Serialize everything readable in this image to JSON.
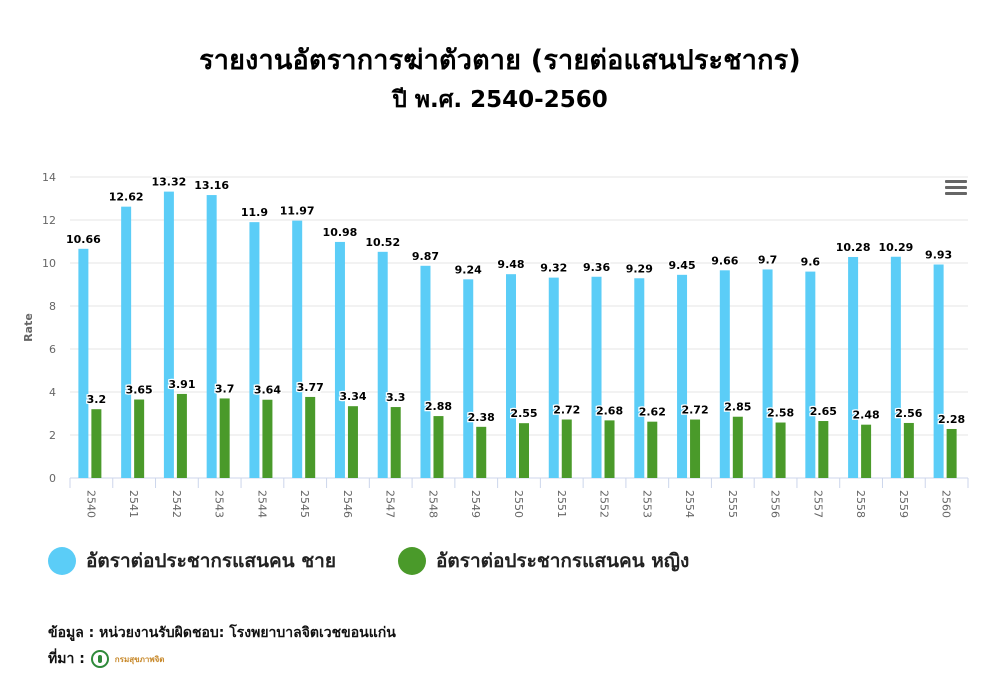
{
  "title": "รายงานอัตราการฆ่าตัวตาย (รายต่อแสนประชากร)",
  "subtitle": "ปี พ.ศ. 2540-2560",
  "source_text": "ข้อมูล : หน่วยงานรับผิดชอบ: โรงพยาบาลจิตเวชขอนแก่น",
  "reference_label": "ที่มา :",
  "reference_org": "กรมสุขภาพจิต",
  "menu_icon": "hamburger-menu-icon",
  "chart_data": {
    "type": "bar",
    "ylabel": "Rate",
    "xlabel": "",
    "ylim": [
      0,
      14
    ],
    "yticks": [
      0,
      2,
      4,
      6,
      8,
      10,
      12,
      14
    ],
    "grid": true,
    "legend_position": "bottom",
    "categories": [
      "2540",
      "2541",
      "2542",
      "2543",
      "2544",
      "2545",
      "2546",
      "2547",
      "2548",
      "2549",
      "2550",
      "2551",
      "2552",
      "2553",
      "2554",
      "2555",
      "2556",
      "2557",
      "2558",
      "2559",
      "2560"
    ],
    "series": [
      {
        "name": "อัตราต่อประชากรแสนคน ชาย",
        "color": "#5bcdf7",
        "values": [
          10.66,
          12.62,
          13.32,
          13.16,
          11.9,
          11.97,
          10.98,
          10.52,
          9.87,
          9.24,
          9.48,
          9.32,
          9.36,
          9.29,
          9.45,
          9.66,
          9.7,
          9.6,
          10.28,
          10.29,
          9.93
        ]
      },
      {
        "name": "อัตราต่อประชากรแสนคน หญิง",
        "color": "#4a9a2a",
        "values": [
          3.2,
          3.65,
          3.91,
          3.7,
          3.64,
          3.77,
          3.34,
          3.3,
          2.88,
          2.38,
          2.55,
          2.72,
          2.68,
          2.62,
          2.72,
          2.85,
          2.58,
          2.65,
          2.48,
          2.56,
          2.28
        ]
      }
    ]
  }
}
